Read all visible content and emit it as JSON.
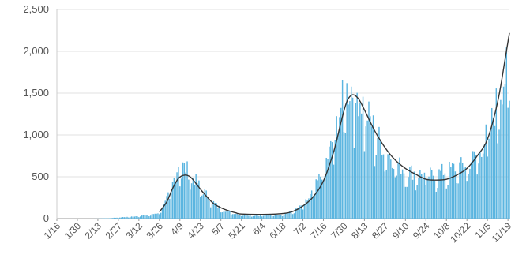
{
  "chart_data": {
    "type": "bar",
    "title": "",
    "xlabel": "",
    "ylabel": "",
    "ylim": [
      0,
      2500
    ],
    "yticks": [
      "0",
      "500",
      "1,000",
      "1,500",
      "2,000",
      "2,500"
    ],
    "ytick_values": [
      0,
      500,
      1000,
      1500,
      2000,
      2500
    ],
    "x_start": "1/16",
    "x_end": "11/20",
    "xticks": [
      "1/16",
      "1/30",
      "2/13",
      "2/27",
      "3/12",
      "3/26",
      "4/9",
      "4/23",
      "5/7",
      "5/21",
      "6/4",
      "6/18",
      "7/2",
      "7/16",
      "7/30",
      "8/13",
      "8/27",
      "9/10",
      "9/24",
      "10/8",
      "10/22",
      "11/5",
      "11/19"
    ],
    "grid": "horizontal",
    "bar_color": "#5bb5e0",
    "line_color": "#333333",
    "series": [
      {
        "type": "bar",
        "points": [
          [
            "1/16",
            0
          ],
          [
            "2/10",
            0
          ],
          [
            "2/13",
            1
          ],
          [
            "2/20",
            5
          ],
          [
            "2/27",
            12
          ],
          [
            "3/5",
            20
          ],
          [
            "3/12",
            30
          ],
          [
            "3/19",
            40
          ],
          [
            "3/26",
            70
          ],
          [
            "3/30",
            180
          ],
          [
            "4/2",
            300
          ],
          [
            "4/5",
            450
          ],
          [
            "4/8",
            620
          ],
          [
            "4/11",
            600
          ],
          [
            "4/14",
            560
          ],
          [
            "4/17",
            500
          ],
          [
            "4/20",
            430
          ],
          [
            "4/23",
            360
          ],
          [
            "4/27",
            280
          ],
          [
            "5/1",
            200
          ],
          [
            "5/5",
            140
          ],
          [
            "5/9",
            100
          ],
          [
            "5/14",
            70
          ],
          [
            "5/19",
            50
          ],
          [
            "5/25",
            40
          ],
          [
            "6/1",
            35
          ],
          [
            "6/10",
            40
          ],
          [
            "6/18",
            50
          ],
          [
            "6/25",
            80
          ],
          [
            "7/1",
            140
          ],
          [
            "7/6",
            230
          ],
          [
            "7/11",
            380
          ],
          [
            "7/16",
            560
          ],
          [
            "7/21",
            800
          ],
          [
            "7/26",
            1150
          ],
          [
            "7/30",
            1400
          ],
          [
            "8/3",
            1500
          ],
          [
            "8/7",
            1450
          ],
          [
            "8/11",
            1350
          ],
          [
            "8/15",
            1200
          ],
          [
            "8/19",
            1050
          ],
          [
            "8/24",
            880
          ],
          [
            "8/29",
            760
          ],
          [
            "9/3",
            650
          ],
          [
            "9/8",
            580
          ],
          [
            "9/13",
            540
          ],
          [
            "9/18",
            520
          ],
          [
            "9/23",
            500
          ],
          [
            "9/28",
            500
          ],
          [
            "10/3",
            520
          ],
          [
            "10/8",
            550
          ],
          [
            "10/13",
            580
          ],
          [
            "10/18",
            600
          ],
          [
            "10/23",
            640
          ],
          [
            "10/28",
            720
          ],
          [
            "11/2",
            850
          ],
          [
            "11/7",
            1050
          ],
          [
            "11/11",
            1300
          ],
          [
            "11/15",
            1550
          ],
          [
            "11/19",
            1700
          ],
          [
            "11/20",
            1650
          ]
        ]
      },
      {
        "type": "line",
        "points": [
          [
            "3/26",
            80
          ],
          [
            "3/31",
            200
          ],
          [
            "4/4",
            360
          ],
          [
            "4/8",
            480
          ],
          [
            "4/12",
            520
          ],
          [
            "4/16",
            500
          ],
          [
            "4/20",
            420
          ],
          [
            "4/24",
            330
          ],
          [
            "4/28",
            250
          ],
          [
            "5/2",
            180
          ],
          [
            "5/7",
            130
          ],
          [
            "5/12",
            95
          ],
          [
            "5/17",
            70
          ],
          [
            "5/21",
            55
          ],
          [
            "6/4",
            50
          ],
          [
            "6/18",
            60
          ],
          [
            "6/25",
            85
          ],
          [
            "7/2",
            150
          ],
          [
            "7/9",
            260
          ],
          [
            "7/16",
            450
          ],
          [
            "7/23",
            800
          ],
          [
            "7/28",
            1150
          ],
          [
            "8/1",
            1400
          ],
          [
            "8/5",
            1480
          ],
          [
            "8/9",
            1430
          ],
          [
            "8/13",
            1300
          ],
          [
            "8/20",
            1050
          ],
          [
            "8/27",
            850
          ],
          [
            "9/3",
            700
          ],
          [
            "9/10",
            600
          ],
          [
            "9/17",
            530
          ],
          [
            "9/24",
            470
          ],
          [
            "10/1",
            460
          ],
          [
            "10/8",
            470
          ],
          [
            "10/15",
            520
          ],
          [
            "10/22",
            600
          ],
          [
            "10/29",
            750
          ],
          [
            "11/5",
            950
          ],
          [
            "11/12",
            1400
          ],
          [
            "11/17",
            1900
          ],
          [
            "11/20",
            2220
          ]
        ]
      }
    ]
  }
}
